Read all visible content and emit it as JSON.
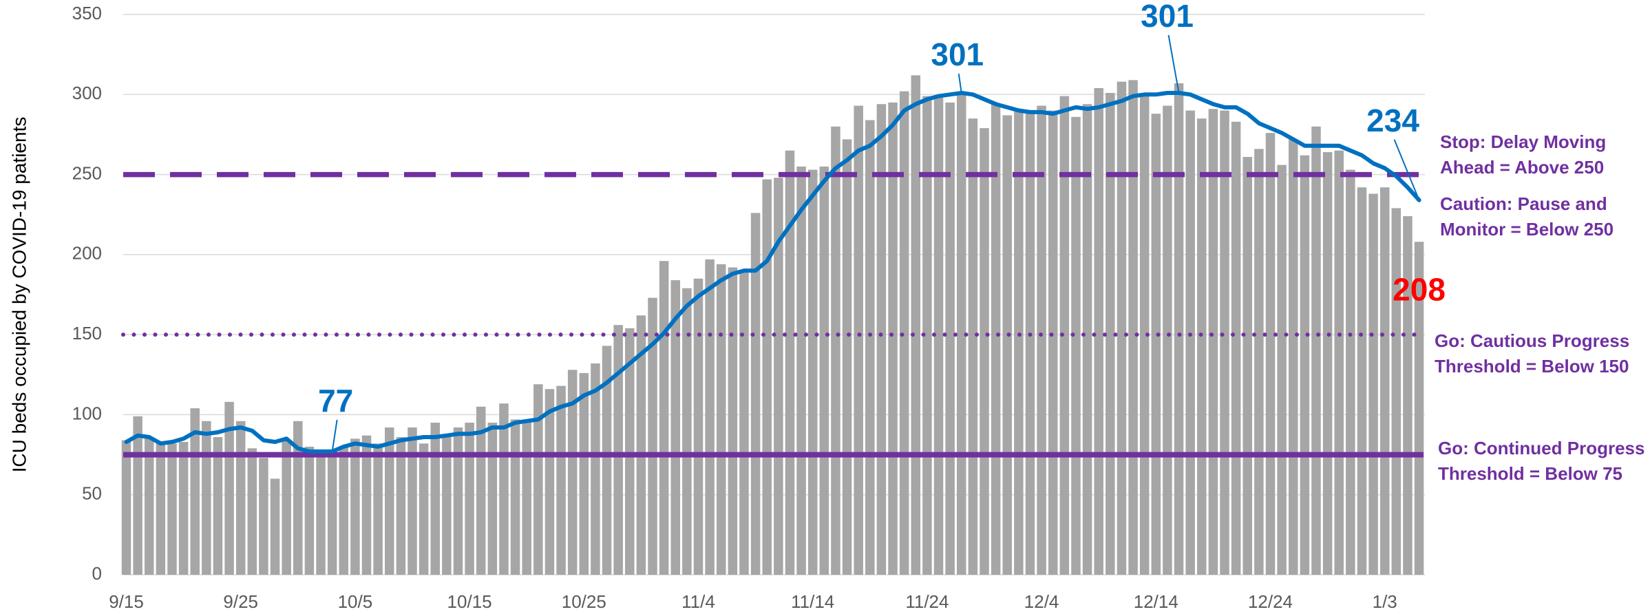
{
  "chart_data": {
    "type": "bar",
    "y_label": "ICU beds occupied by COVID-19 patients",
    "ylim": [
      0,
      350
    ],
    "yticks": [
      0,
      50,
      100,
      150,
      200,
      250,
      300,
      350
    ],
    "grid": true,
    "categories": [
      "9/15",
      null,
      null,
      null,
      null,
      null,
      null,
      null,
      null,
      null,
      "9/25",
      null,
      null,
      null,
      null,
      null,
      null,
      null,
      null,
      null,
      "10/5",
      null,
      null,
      null,
      null,
      null,
      null,
      null,
      null,
      null,
      "10/15",
      null,
      null,
      null,
      null,
      null,
      null,
      null,
      null,
      null,
      "10/25",
      null,
      null,
      null,
      null,
      null,
      null,
      null,
      null,
      null,
      "11/4",
      null,
      null,
      null,
      null,
      null,
      null,
      null,
      null,
      null,
      "11/14",
      null,
      null,
      null,
      null,
      null,
      null,
      null,
      null,
      null,
      "11/24",
      null,
      null,
      null,
      null,
      null,
      null,
      null,
      null,
      null,
      "12/4",
      null,
      null,
      null,
      null,
      null,
      null,
      null,
      null,
      null,
      "12/14",
      null,
      null,
      null,
      null,
      null,
      null,
      null,
      null,
      null,
      "12/24",
      null,
      null,
      null,
      null,
      null,
      null,
      null,
      null,
      null,
      "1/3",
      null,
      null,
      null
    ],
    "series": [
      {
        "type": "bar",
        "color": "#a6a6a6",
        "label_color": "#ff0000",
        "values": [
          84,
          99,
          86,
          83,
          82,
          83,
          104,
          96,
          86,
          108,
          96,
          79,
          73,
          60,
          84,
          96,
          80,
          78,
          77,
          80,
          85,
          87,
          82,
          92,
          86,
          92,
          82,
          95,
          88,
          92,
          95,
          105,
          95,
          107,
          97,
          96,
          119,
          116,
          118,
          128,
          126,
          132,
          143,
          156,
          154,
          162,
          173,
          196,
          184,
          179,
          185,
          197,
          194,
          192,
          190,
          226,
          247,
          248,
          265,
          255,
          253,
          255,
          280,
          272,
          293,
          284,
          294,
          295,
          302,
          312,
          299,
          298,
          295,
          300,
          285,
          279,
          294,
          287,
          290,
          289,
          293,
          290,
          299,
          286,
          294,
          304,
          301,
          308,
          309,
          300,
          288,
          293,
          307,
          290,
          285,
          291,
          290,
          283,
          261,
          266,
          276,
          256,
          272,
          262,
          280,
          264,
          265,
          253,
          242,
          238,
          242,
          229,
          224,
          208
        ],
        "value_labels": [
          null,
          null,
          null,
          null,
          null,
          null,
          null,
          null,
          null,
          null,
          null,
          null,
          null,
          null,
          null,
          null,
          null,
          null,
          null,
          null,
          null,
          null,
          null,
          null,
          null,
          null,
          null,
          null,
          null,
          null,
          null,
          null,
          null,
          null,
          null,
          null,
          null,
          null,
          null,
          null,
          null,
          null,
          null,
          null,
          null,
          null,
          null,
          null,
          null,
          null,
          null,
          null,
          null,
          null,
          null,
          null,
          null,
          null,
          null,
          null,
          null,
          null,
          null,
          null,
          null,
          null,
          null,
          null,
          null,
          null,
          null,
          null,
          null,
          null,
          null,
          null,
          null,
          null,
          null,
          null,
          null,
          null,
          null,
          null,
          null,
          null,
          null,
          null,
          null,
          null,
          null,
          null,
          null,
          null,
          null,
          null,
          null,
          null,
          null,
          null,
          null,
          null,
          null,
          null,
          null,
          null,
          null,
          null,
          null,
          null,
          null,
          null,
          null,
          "208"
        ]
      },
      {
        "type": "line",
        "color": "#0070c0",
        "label_color": "#0070c0",
        "values": [
          83,
          87,
          86,
          82,
          83,
          85,
          89,
          88,
          89,
          91,
          92,
          90,
          84,
          83,
          85,
          79,
          77,
          77,
          77,
          80,
          82,
          81,
          80,
          82,
          84,
          85,
          86,
          86,
          87,
          88,
          88,
          89,
          92,
          92,
          95,
          96,
          97,
          102,
          105,
          107,
          112,
          115,
          120,
          126,
          132,
          138,
          144,
          151,
          160,
          168,
          174,
          179,
          184,
          188,
          190,
          190,
          196,
          208,
          218,
          228,
          237,
          246,
          254,
          259,
          265,
          268,
          274,
          281,
          290,
          294,
          297,
          299,
          300,
          301,
          300,
          297,
          294,
          292,
          290,
          289,
          289,
          288,
          290,
          292,
          291,
          292,
          294,
          296,
          299,
          300,
          300,
          301,
          301,
          300,
          297,
          294,
          292,
          292,
          288,
          282,
          279,
          276,
          272,
          268,
          268,
          268,
          268,
          265,
          262,
          257,
          254,
          249,
          242,
          234
        ],
        "value_labels": [
          null,
          null,
          null,
          null,
          null,
          null,
          null,
          null,
          null,
          null,
          null,
          null,
          null,
          null,
          null,
          null,
          null,
          null,
          "77",
          null,
          null,
          null,
          null,
          null,
          null,
          null,
          null,
          null,
          null,
          null,
          null,
          null,
          null,
          null,
          null,
          null,
          null,
          null,
          null,
          null,
          null,
          null,
          null,
          null,
          null,
          null,
          null,
          null,
          null,
          null,
          null,
          null,
          null,
          null,
          null,
          null,
          null,
          null,
          null,
          null,
          null,
          null,
          null,
          null,
          null,
          null,
          null,
          null,
          null,
          null,
          null,
          null,
          null,
          "301",
          null,
          null,
          null,
          null,
          null,
          null,
          null,
          null,
          null,
          null,
          null,
          null,
          null,
          null,
          null,
          null,
          null,
          null,
          "301",
          null,
          null,
          null,
          null,
          null,
          null,
          null,
          null,
          null,
          null,
          null,
          null,
          null,
          null,
          null,
          null,
          null,
          null,
          null,
          null,
          "234"
        ]
      }
    ],
    "reference_lines": [
      {
        "value": 250,
        "style": "dashed",
        "color": "#7030a0",
        "labels": [
          "Stop: Delay Moving",
          "Ahead = Above 250",
          "Caution: Pause and",
          "Monitor = Below 250"
        ]
      },
      {
        "value": 150,
        "style": "dotted",
        "color": "#7030a0",
        "labels": [
          "Go: Cautious Progress",
          "Threshold = Below 150"
        ]
      },
      {
        "value": 75,
        "style": "solid",
        "color": "#7030a0",
        "labels": [
          "Go: Continued Progress",
          "Threshold = Below 75"
        ]
      }
    ]
  }
}
